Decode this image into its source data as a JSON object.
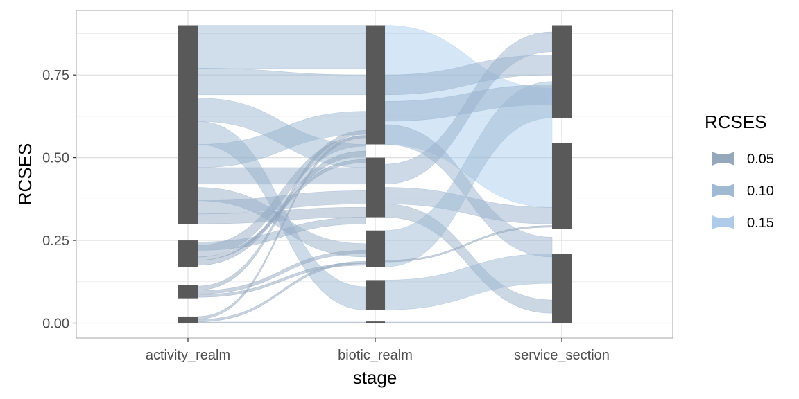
{
  "chart_data": {
    "type": "alluvial",
    "xlabel": "stage",
    "ylabel": "RCSES",
    "axes": [
      "activity_realm",
      "biotic_realm",
      "service_section"
    ],
    "ylim": [
      -0.045,
      0.945
    ],
    "y_ticks": [
      0.0,
      0.25,
      0.5,
      0.75
    ],
    "y_tick_labels": [
      "0.00",
      "0.25",
      "0.50",
      "0.75"
    ],
    "gridlines": true,
    "colors": {
      "stratum_fill": "#595959",
      "ribbon_low": "#8a9db4",
      "ribbon_high": "#a8cdec",
      "panel_border": "#b3b3b3",
      "grid_major": "#dedede",
      "grid_minor": "#ececec"
    },
    "strata": {
      "activity_realm": [
        {
          "lo": 0.0,
          "hi": 0.02
        },
        {
          "lo": 0.075,
          "hi": 0.115
        },
        {
          "lo": 0.17,
          "hi": 0.25
        },
        {
          "lo": 0.3,
          "hi": 0.9
        }
      ],
      "biotic_realm": [
        {
          "lo": 0.0,
          "hi": 0.005
        },
        {
          "lo": 0.04,
          "hi": 0.13
        },
        {
          "lo": 0.17,
          "hi": 0.28
        },
        {
          "lo": 0.32,
          "hi": 0.5
        },
        {
          "lo": 0.54,
          "hi": 0.9
        }
      ],
      "service_section": [
        {
          "lo": 0.0,
          "hi": 0.21
        },
        {
          "lo": 0.285,
          "hi": 0.545
        },
        {
          "lo": 0.62,
          "hi": 0.9
        }
      ]
    },
    "flows_activity_to_biotic": [
      {
        "from": [
          0.77,
          0.9
        ],
        "to": [
          0.77,
          0.9
        ],
        "value": 0.13
      },
      {
        "from": [
          0.69,
          0.77
        ],
        "to": [
          0.69,
          0.75
        ],
        "value": 0.07
      },
      {
        "from": [
          0.61,
          0.68
        ],
        "to": [
          0.47,
          0.54
        ],
        "value": 0.07
      },
      {
        "from": [
          0.54,
          0.61
        ],
        "to": [
          0.04,
          0.11
        ],
        "value": 0.07
      },
      {
        "from": [
          0.47,
          0.54
        ],
        "to": [
          0.57,
          0.64
        ],
        "value": 0.07
      },
      {
        "from": [
          0.42,
          0.47
        ],
        "to": [
          0.42,
          0.47
        ],
        "value": 0.05
      },
      {
        "from": [
          0.37,
          0.41
        ],
        "to": [
          0.2,
          0.24
        ],
        "value": 0.04
      },
      {
        "from": [
          0.33,
          0.37
        ],
        "to": [
          0.36,
          0.4
        ],
        "value": 0.04
      },
      {
        "from": [
          0.3,
          0.33
        ],
        "to": [
          0.32,
          0.35
        ],
        "value": 0.03
      },
      {
        "from": [
          0.2,
          0.235
        ],
        "to": [
          0.535,
          0.565
        ],
        "value": 0.03
      },
      {
        "from": [
          0.22,
          0.245
        ],
        "to": [
          0.3,
          0.32
        ],
        "value": 0.025
      },
      {
        "from": [
          0.175,
          0.19
        ],
        "to": [
          0.505,
          0.52
        ],
        "value": 0.015
      },
      {
        "from": [
          0.19,
          0.2
        ],
        "to": [
          0.485,
          0.495
        ],
        "value": 0.01
      },
      {
        "from": [
          0.1,
          0.112
        ],
        "to": [
          0.57,
          0.582
        ],
        "value": 0.012
      },
      {
        "from": [
          0.088,
          0.098
        ],
        "to": [
          0.21,
          0.22
        ],
        "value": 0.01
      },
      {
        "from": [
          0.078,
          0.086
        ],
        "to": [
          0.175,
          0.183
        ],
        "value": 0.008
      },
      {
        "from": [
          0.012,
          0.02
        ],
        "to": [
          0.56,
          0.568
        ],
        "value": 0.008
      },
      {
        "from": [
          0.004,
          0.011
        ],
        "to": [
          0.18,
          0.187
        ],
        "value": 0.007
      },
      {
        "from": [
          0.0,
          0.003
        ],
        "to": [
          0.0,
          0.003
        ],
        "value": 0.003
      }
    ],
    "flows_biotic_to_service": [
      {
        "from": [
          0.54,
          0.9
        ],
        "to": [
          0.35,
          0.71
        ],
        "value": 0.36
      },
      {
        "from": [
          0.69,
          0.75
        ],
        "to": [
          0.75,
          0.81
        ],
        "value": 0.06
      },
      {
        "from": [
          0.61,
          0.67
        ],
        "to": [
          0.66,
          0.72
        ],
        "value": 0.06
      },
      {
        "from": [
          0.54,
          0.6
        ],
        "to": [
          0.2,
          0.26
        ],
        "value": 0.06
      },
      {
        "from": [
          0.42,
          0.48
        ],
        "to": [
          0.82,
          0.88
        ],
        "value": 0.06
      },
      {
        "from": [
          0.36,
          0.41
        ],
        "to": [
          0.3,
          0.35
        ],
        "value": 0.05
      },
      {
        "from": [
          0.32,
          0.36
        ],
        "to": [
          0.03,
          0.07
        ],
        "value": 0.04
      },
      {
        "from": [
          0.17,
          0.28
        ],
        "to": [
          0.62,
          0.73
        ],
        "value": 0.11
      },
      {
        "from": [
          0.04,
          0.13
        ],
        "to": [
          0.12,
          0.21
        ],
        "value": 0.09
      },
      {
        "from": [
          0.185,
          0.19
        ],
        "to": [
          0.29,
          0.295
        ],
        "value": 0.005
      },
      {
        "from": [
          0.0,
          0.003
        ],
        "to": [
          0.0,
          0.003
        ],
        "value": 0.003
      }
    ],
    "legend": {
      "title": "RCSES",
      "placement": "right",
      "entries": [
        {
          "label": "0.05",
          "color": "#8a9db4"
        },
        {
          "label": "0.10",
          "color": "#97b3ce"
        },
        {
          "label": "0.15",
          "color": "#a5c7e7"
        }
      ]
    }
  }
}
